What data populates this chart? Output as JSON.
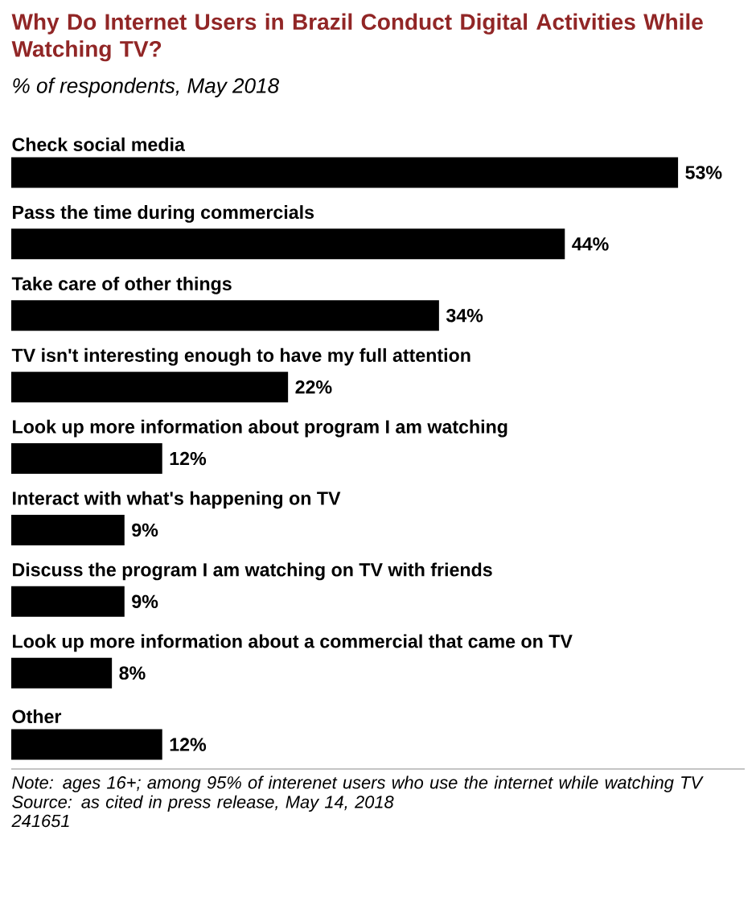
{
  "chart_data": {
    "type": "bar",
    "orientation": "horizontal",
    "title": "Why Do Internet Users in Brazil Conduct Digital Activities While Watching TV?",
    "subtitle": "% of respondents, May 2018",
    "categories": [
      "Check social media",
      "Pass the time during commercials",
      "Take care of other things",
      "TV isn't interesting enough to have my full attention",
      "Look up more information about program I am watching",
      "Interact with what's happening on TV",
      "Discuss the program I am watching on TV with friends",
      "Look up more information about a commercial that came on TV",
      "Other"
    ],
    "values": [
      53,
      44,
      34,
      22,
      12,
      9,
      9,
      8,
      12
    ],
    "color": "#000000",
    "value_labels": [
      "53%",
      "44%",
      "34%",
      "22%",
      "12%",
      "9%",
      "9%",
      "8%",
      "12%"
    ],
    "annotations": [
      "Note: ages 16+; among 95% of interenet users who use the internet while watching TV",
      "Source: as cited in press release, May 14, 2018",
      "241651"
    ]
  }
}
